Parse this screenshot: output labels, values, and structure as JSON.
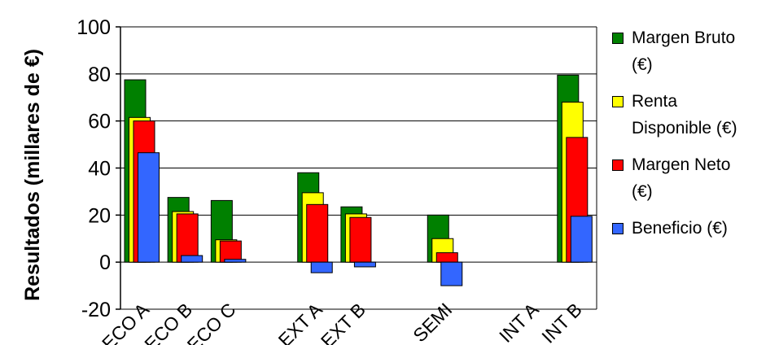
{
  "chart_data": {
    "type": "bar",
    "ylabel": "Resultados (millares de €)",
    "ylim": [
      -20,
      100
    ],
    "yticks": [
      -20,
      0,
      20,
      40,
      60,
      80,
      100
    ],
    "categories": [
      "ECO A",
      "ECO B",
      "ECO C",
      "",
      "EXT A",
      "EXT B",
      "",
      "SEMI",
      "",
      "INT A",
      "INT B"
    ],
    "series": [
      {
        "name": "Margen Bruto (€)",
        "color": "#008000",
        "values": [
          77.5,
          27.5,
          26.2,
          null,
          38.0,
          23.5,
          null,
          20.0,
          null,
          0,
          79.5
        ]
      },
      {
        "name": "Renta Disponible (€)",
        "color": "#ffff00",
        "values": [
          61.5,
          21.5,
          9.5,
          null,
          29.5,
          20.5,
          null,
          10.0,
          null,
          0,
          68.0
        ]
      },
      {
        "name": "Margen Neto (€)",
        "color": "#ff0000",
        "values": [
          60.0,
          20.5,
          9.0,
          null,
          24.5,
          19.0,
          null,
          4.0,
          null,
          0,
          53.0
        ]
      },
      {
        "name": "Beneficio (€)",
        "color": "#3366ff",
        "values": [
          46.5,
          2.8,
          1.2,
          null,
          -4.5,
          -2.0,
          null,
          -10.0,
          null,
          0,
          19.5
        ]
      }
    ],
    "grid": true,
    "legend_position": "right"
  }
}
